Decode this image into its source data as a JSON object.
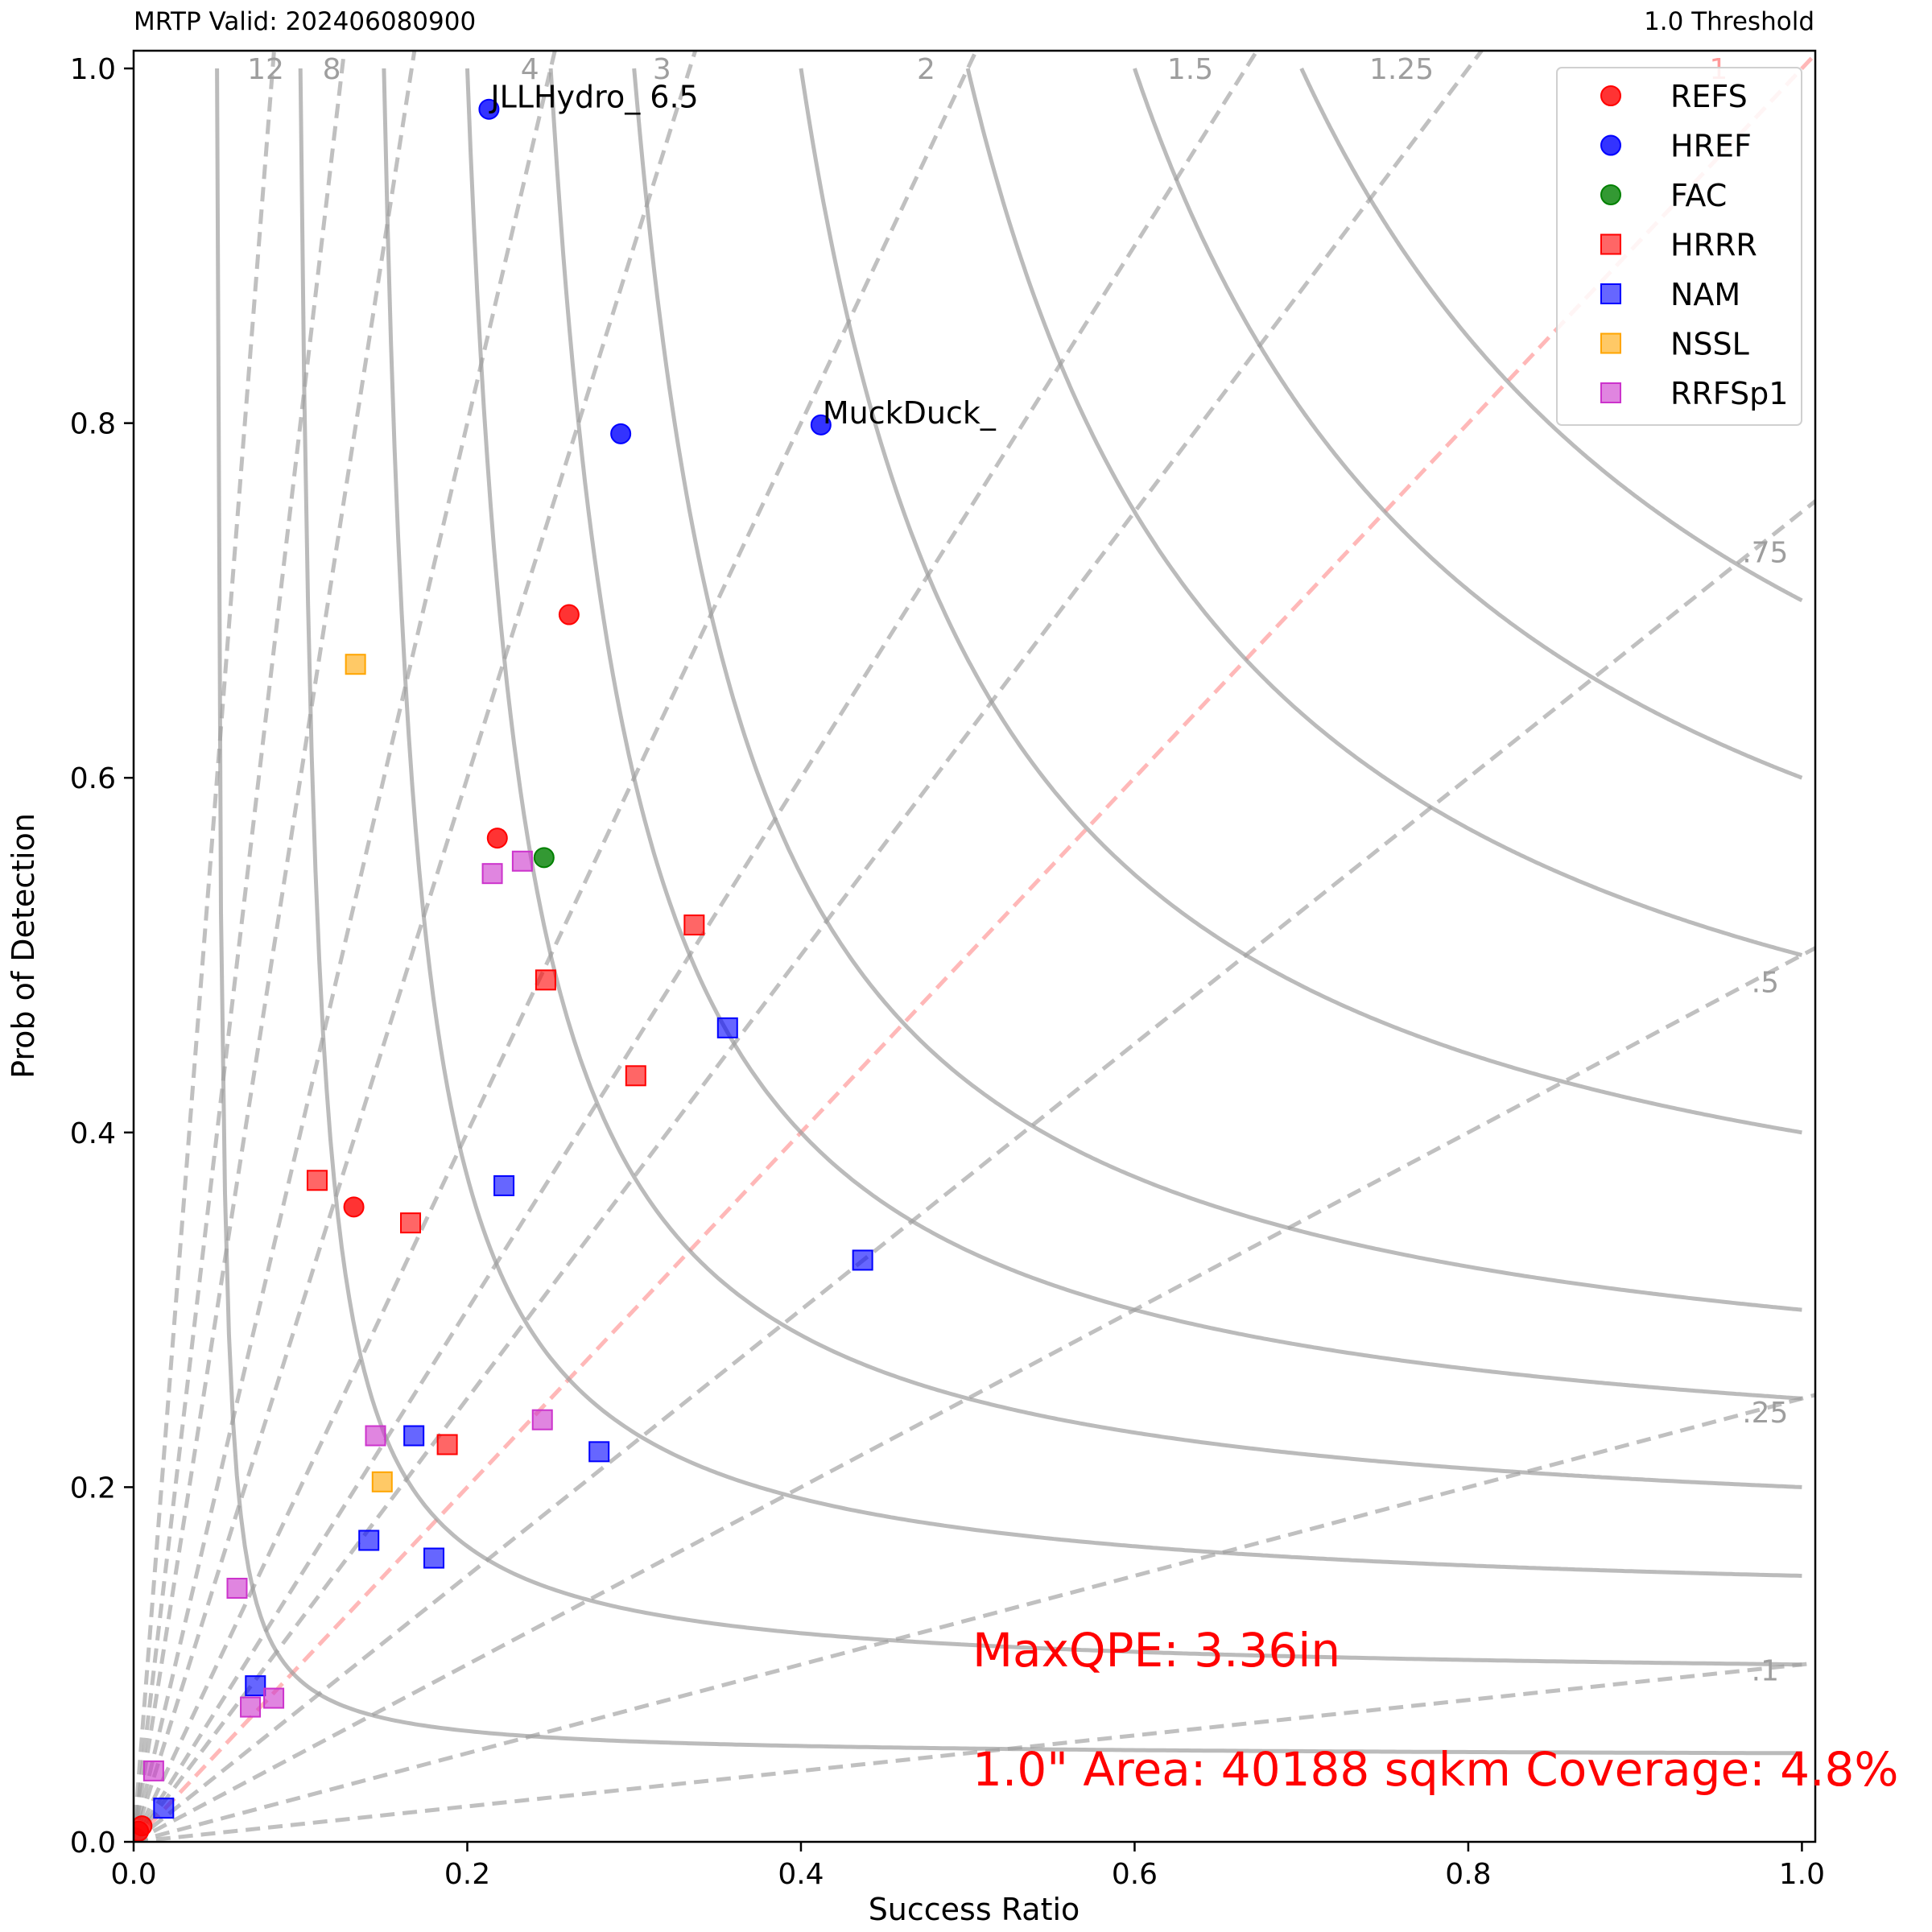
{
  "header": {
    "left": "MRTP Valid: 202406080900",
    "right": "1.0 Threshold"
  },
  "chart_data": {
    "type": "scatter",
    "title": "",
    "xlabel": "Success Ratio",
    "ylabel": "Prob of Detection",
    "xlim": [
      0,
      1.008
    ],
    "ylim": [
      0,
      1.01
    ],
    "xticks": [
      "0.0",
      "0.2",
      "0.4",
      "0.6",
      "0.8",
      "1.0"
    ],
    "yticks": [
      "0.0",
      "0.2",
      "0.4",
      "0.6",
      "0.8",
      "1.0"
    ],
    "grid": false,
    "legend_position": "top-right",
    "colors": {
      "csi_line": "#9e9e9e",
      "bias_line": "#9e9e9e",
      "bias_one_line": "#ff9a9a",
      "label_gray": "#9e9e9e",
      "annotation_red": "#ff0000"
    },
    "csi_values": [
      0.05,
      0.1,
      0.15,
      0.2,
      0.25,
      0.3,
      0.4,
      0.5,
      0.6,
      0.7
    ],
    "bias_lines": [
      {
        "value": 12,
        "label": "12"
      },
      {
        "value": 8,
        "label": "8"
      },
      {
        "value": 6,
        "label": ""
      },
      {
        "value": 4,
        "label": "4"
      },
      {
        "value": 3,
        "label": "3"
      },
      {
        "value": 2,
        "label": "2"
      },
      {
        "value": 1.5,
        "label": "1.5"
      },
      {
        "value": 1.25,
        "label": "1.25"
      },
      {
        "value": 1,
        "label": "1"
      },
      {
        "value": 0.75,
        "label": ".75"
      },
      {
        "value": 0.5,
        "label": ".5"
      },
      {
        "value": 0.25,
        "label": ".25"
      },
      {
        "value": 0.1,
        "label": ".1"
      }
    ],
    "series": [
      {
        "name": "REFS",
        "marker": "circle",
        "color": "#ff0000",
        "points": [
          [
            0.218,
            0.566
          ],
          [
            0.261,
            0.692
          ],
          [
            0.132,
            0.358
          ],
          [
            0.003,
            0.006
          ],
          [
            0.005,
            0.009
          ]
        ]
      },
      {
        "name": "HREF",
        "marker": "circle",
        "color": "#0000ff",
        "points": [
          [
            0.213,
            0.977
          ],
          [
            0.292,
            0.794
          ],
          [
            0.412,
            0.799
          ]
        ]
      },
      {
        "name": "FAC",
        "marker": "circle",
        "color": "#008000",
        "points": [
          [
            0.246,
            0.555
          ]
        ]
      },
      {
        "name": "HRRR",
        "marker": "square",
        "color": "#ff0000",
        "points": [
          [
            0.247,
            0.486
          ],
          [
            0.301,
            0.432
          ],
          [
            0.336,
            0.517
          ],
          [
            0.11,
            0.373
          ],
          [
            0.166,
            0.349
          ],
          [
            0.188,
            0.224
          ]
        ]
      },
      {
        "name": "NAM",
        "marker": "square",
        "color": "#0000ff",
        "points": [
          [
            0.356,
            0.459
          ],
          [
            0.437,
            0.328
          ],
          [
            0.279,
            0.22
          ],
          [
            0.141,
            0.17
          ],
          [
            0.18,
            0.16
          ],
          [
            0.222,
            0.37
          ],
          [
            0.168,
            0.229
          ],
          [
            0.073,
            0.088
          ],
          [
            0.018,
            0.019
          ]
        ]
      },
      {
        "name": "NSSL",
        "marker": "square",
        "color": "#ffa500",
        "points": [
          [
            0.133,
            0.664
          ],
          [
            0.149,
            0.203
          ]
        ]
      },
      {
        "name": "RRFSp1",
        "marker": "square",
        "color": "#cc33cc",
        "points": [
          [
            0.215,
            0.546
          ],
          [
            0.233,
            0.553
          ],
          [
            0.245,
            0.238
          ],
          [
            0.145,
            0.229
          ],
          [
            0.062,
            0.143
          ],
          [
            0.084,
            0.081
          ],
          [
            0.07,
            0.076
          ],
          [
            0.012,
            0.04
          ]
        ]
      }
    ],
    "point_labels": [
      {
        "text": "JLLHydro_ 6.5",
        "x": 0.213,
        "y": 0.977
      },
      {
        "text": "MuckDuck_",
        "x": 0.412,
        "y": 0.799
      }
    ],
    "annotations": [
      "MaxQPE: 3.36in",
      "1.0\" Area: 40188 sqkm Coverage: 4.8%"
    ]
  }
}
